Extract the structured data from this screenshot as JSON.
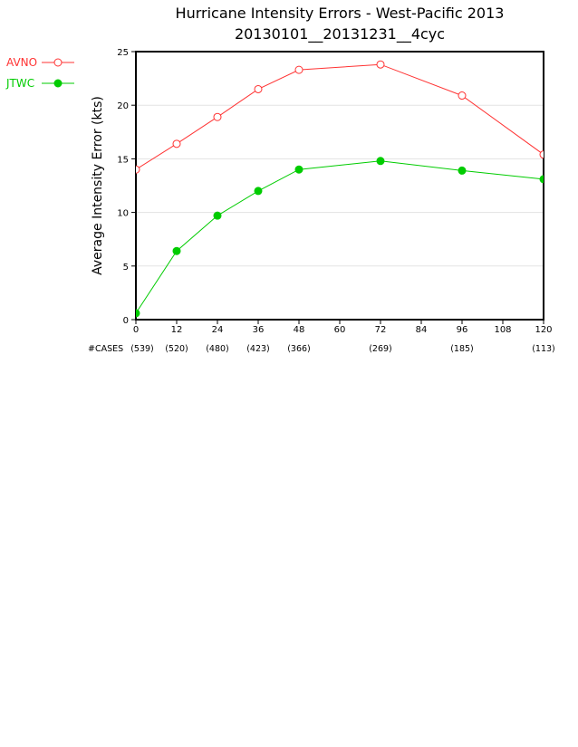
{
  "chart_data": {
    "type": "line",
    "title": "Hurricane Intensity Errors - West-Pacific 2013",
    "subtitle": "20130101__20131231__4cyc",
    "xlabel": "",
    "ylabel": "Average Intensity Error  (kts)",
    "x_ticks": [
      0,
      12,
      24,
      36,
      48,
      60,
      72,
      84,
      96,
      108,
      120
    ],
    "y_ticks": [
      0,
      5,
      10,
      15,
      20,
      25
    ],
    "xlim": [
      0,
      120
    ],
    "ylim": [
      0,
      25
    ],
    "grid": "horizontal",
    "legend_position": "top-left, outside plot",
    "cases_label": "#CASES",
    "cases": [
      {
        "x": 0,
        "label": "(539)"
      },
      {
        "x": 12,
        "label": "(520)"
      },
      {
        "x": 24,
        "label": "(480)"
      },
      {
        "x": 36,
        "label": "(423)"
      },
      {
        "x": 48,
        "label": "(366)"
      },
      {
        "x": 72,
        "label": "(269)"
      },
      {
        "x": 96,
        "label": "(185)"
      },
      {
        "x": 120,
        "label": "(113)"
      }
    ],
    "series": [
      {
        "name": "AVNO",
        "color": "#ff3333",
        "marker": "open-circle",
        "x": [
          0,
          12,
          24,
          36,
          48,
          72,
          96,
          120
        ],
        "values": [
          14.0,
          16.4,
          18.9,
          21.5,
          23.3,
          23.8,
          20.9,
          15.4
        ]
      },
      {
        "name": "JTWC",
        "color": "#00cc00",
        "marker": "filled-circle",
        "x": [
          0,
          12,
          24,
          36,
          48,
          72,
          96,
          120
        ],
        "values": [
          0.6,
          6.4,
          9.7,
          12.0,
          14.0,
          14.8,
          13.9,
          13.1
        ]
      }
    ]
  }
}
